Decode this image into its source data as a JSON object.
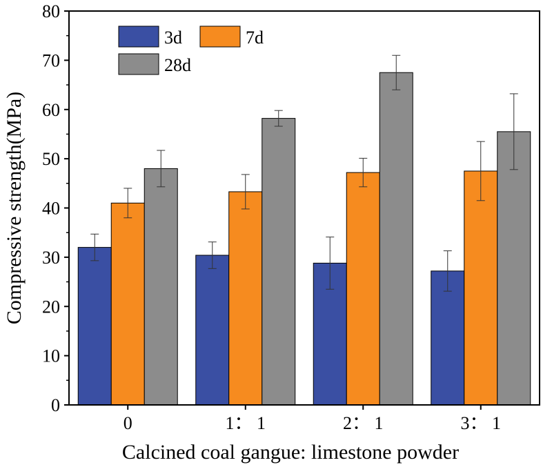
{
  "chart_data": {
    "type": "bar",
    "xlabel": "Calcined coal gangue: limestone powder",
    "ylabel": "Compressive strength(MPa)",
    "categories": [
      "0",
      "1： 1",
      "2： 1",
      "3： 1"
    ],
    "ylim": [
      0,
      80
    ],
    "yticks": [
      0,
      10,
      20,
      30,
      40,
      50,
      60,
      70,
      80
    ],
    "grid": false,
    "legend_position": "top-left",
    "series": [
      {
        "name": "3d",
        "color": "#3a4fa3",
        "values": [
          32.0,
          30.4,
          28.8,
          27.2
        ],
        "errors": [
          2.7,
          2.7,
          5.3,
          4.1
        ]
      },
      {
        "name": "7d",
        "color": "#f68b1f",
        "values": [
          41.0,
          43.3,
          47.2,
          47.5
        ],
        "errors": [
          3.0,
          3.5,
          2.9,
          6.0
        ]
      },
      {
        "name": "28d",
        "color": "#8c8c8c",
        "values": [
          48.0,
          58.2,
          67.5,
          55.5
        ],
        "errors": [
          3.7,
          1.6,
          3.5,
          7.7
        ]
      }
    ]
  }
}
